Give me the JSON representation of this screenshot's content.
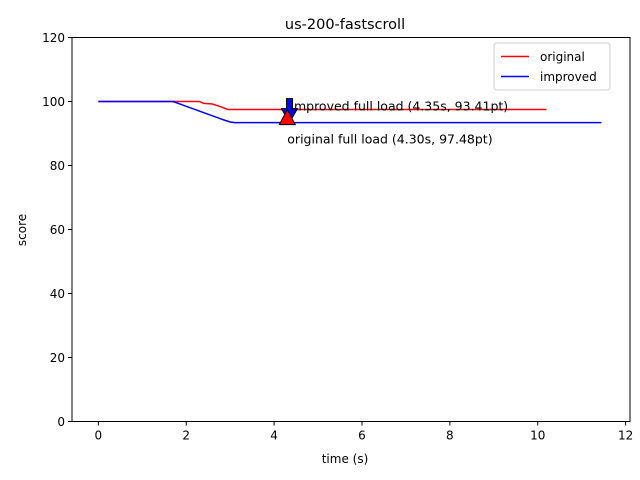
{
  "chart_data": {
    "type": "line",
    "title": "us-200-fastscroll",
    "xlabel": "time (s)",
    "ylabel": "score",
    "xlim": [
      -0.6,
      12.1
    ],
    "ylim": [
      0,
      120
    ],
    "xticks": [
      0,
      2,
      4,
      6,
      8,
      10,
      12
    ],
    "yticks": [
      0,
      20,
      40,
      60,
      80,
      100,
      120
    ],
    "xtick_labels": [
      "0",
      "2",
      "4",
      "6",
      "8",
      "10",
      "12"
    ],
    "ytick_labels": [
      "0",
      "20",
      "40",
      "60",
      "80",
      "100",
      "120"
    ],
    "grid": false,
    "legend_position": "top-right",
    "series": [
      {
        "name": "original",
        "color": "#ff0000",
        "x": [
          0,
          1.8,
          2.0,
          2.3,
          2.4,
          2.6,
          2.8,
          2.95,
          4.3,
          10.2
        ],
        "y": [
          100,
          100,
          100,
          100,
          99.4,
          99.2,
          98.3,
          97.48,
          97.48,
          97.48
        ]
      },
      {
        "name": "improved",
        "color": "#0000ff",
        "x": [
          0,
          1.7,
          2.0,
          2.4,
          2.8,
          3.0,
          3.1,
          4.35,
          11.45
        ],
        "y": [
          100,
          100,
          98.5,
          96.5,
          94.5,
          93.6,
          93.41,
          93.41,
          93.41
        ]
      }
    ],
    "annotations": [
      {
        "text": "improved full load (4.35s, 93.41pt)",
        "x": 4.35,
        "y": 93.41,
        "marker": "down-triangle",
        "color": "#0000ff"
      },
      {
        "text": "original full load (4.30s, 97.48pt)",
        "x": 4.3,
        "y": 97.48,
        "marker": "up-triangle",
        "color": "#ff0000"
      }
    ]
  }
}
